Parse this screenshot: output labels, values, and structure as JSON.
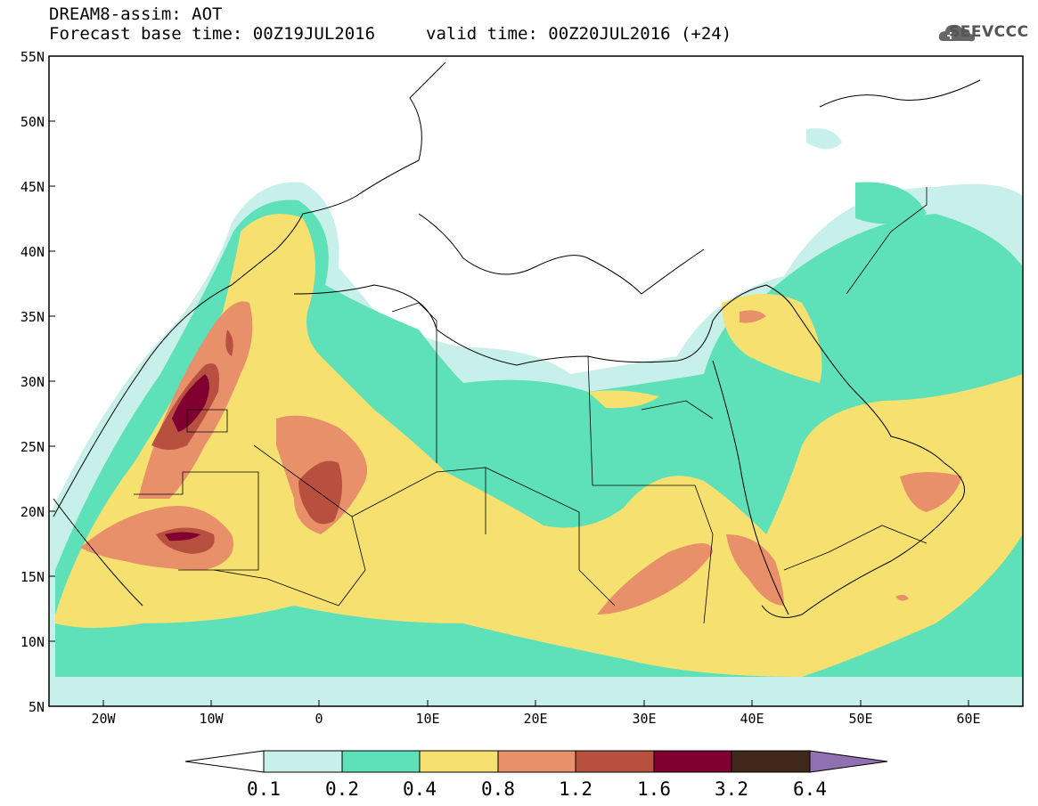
{
  "header": {
    "title": "DREAM8-assim: AOT",
    "forecast_base": "Forecast base time: 00Z19JUL2016",
    "valid_time": "valid time: 00Z20JUL2016 (+24)"
  },
  "logo": {
    "text": "SEEVCCC",
    "icon": "cloud-icon"
  },
  "map": {
    "lat_labels": [
      "55N",
      "50N",
      "45N",
      "40N",
      "35N",
      "30N",
      "25N",
      "20N",
      "15N",
      "10N",
      "5N"
    ],
    "lon_labels": [
      "20W",
      "10W",
      "0",
      "10E",
      "20E",
      "30E",
      "40E",
      "50E",
      "60E"
    ],
    "lat_range": [
      5,
      55
    ],
    "lon_range": [
      -25,
      65
    ]
  },
  "colorbar": {
    "labels": [
      "0.1",
      "0.2",
      "0.4",
      "0.8",
      "1.2",
      "1.6",
      "3.2",
      "6.4"
    ],
    "colors": [
      "#c8f0ea",
      "#5ee0b8",
      "#f5e070",
      "#e8906a",
      "#b85040",
      "#800030",
      "#40281a",
      "#9070b0"
    ]
  }
}
